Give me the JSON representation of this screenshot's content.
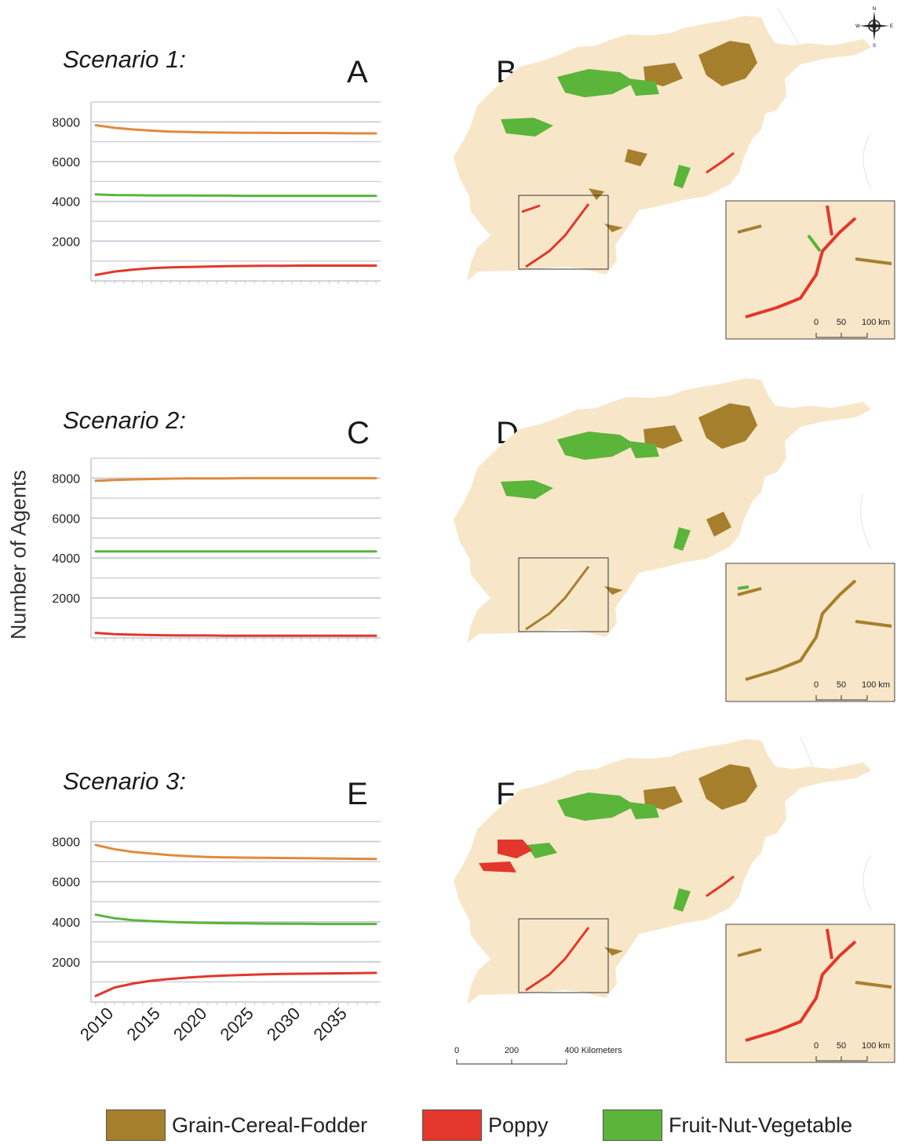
{
  "figure": {
    "ylabel": "Number of Agents"
  },
  "colors": {
    "grain": "#a57f2c",
    "grain_line": "#e08a3c",
    "poppy": "#e2372a",
    "fruit": "#5ab53a",
    "land": "#f8e6c8",
    "grid": "#c4c7d4"
  },
  "panels": {
    "A": "A",
    "B": "B",
    "C": "C",
    "D": "D",
    "E": "E",
    "F": "F"
  },
  "scenarios": [
    {
      "title": "Scenario 1:"
    },
    {
      "title": "Scenario 2:"
    },
    {
      "title": "Scenario 3:"
    }
  ],
  "chart_data": [
    {
      "type": "line",
      "panel": "A",
      "x": [
        2008,
        2010,
        2012,
        2014,
        2016,
        2018,
        2020,
        2022,
        2024,
        2026,
        2028,
        2030,
        2032,
        2034,
        2036,
        2038
      ],
      "ylim": [
        0,
        9000
      ],
      "yticks": [
        "8000",
        "6000",
        "4000",
        "2000"
      ],
      "xticks": [],
      "grid": true,
      "series": [
        {
          "color": "grain",
          "values": [
            7830,
            7700,
            7620,
            7560,
            7510,
            7490,
            7470,
            7460,
            7450,
            7450,
            7440,
            7440,
            7440,
            7430,
            7420,
            7420
          ]
        },
        {
          "color": "fruit",
          "values": [
            4350,
            4320,
            4310,
            4300,
            4300,
            4300,
            4290,
            4290,
            4280,
            4280,
            4280,
            4280,
            4280,
            4280,
            4280,
            4280
          ]
        },
        {
          "color": "poppy",
          "values": [
            300,
            470,
            570,
            640,
            680,
            700,
            720,
            740,
            750,
            760,
            760,
            770,
            770,
            770,
            770,
            770
          ]
        }
      ]
    },
    {
      "type": "line",
      "panel": "C",
      "x": [
        2008,
        2010,
        2012,
        2014,
        2016,
        2018,
        2020,
        2022,
        2024,
        2026,
        2028,
        2030,
        2032,
        2034,
        2036,
        2038
      ],
      "ylim": [
        0,
        9000
      ],
      "yticks": [
        "8000",
        "6000",
        "4000",
        "2000"
      ],
      "xticks": [],
      "grid": true,
      "series": [
        {
          "color": "grain",
          "values": [
            7870,
            7910,
            7940,
            7960,
            7980,
            7990,
            7990,
            7990,
            8000,
            8000,
            8000,
            8000,
            8000,
            8000,
            8000,
            8000
          ]
        },
        {
          "color": "fruit",
          "values": [
            4330,
            4330,
            4330,
            4330,
            4330,
            4330,
            4330,
            4330,
            4330,
            4330,
            4330,
            4330,
            4330,
            4330,
            4330,
            4330
          ]
        },
        {
          "color": "poppy",
          "values": [
            250,
            190,
            160,
            140,
            130,
            120,
            120,
            110,
            110,
            110,
            110,
            110,
            110,
            110,
            110,
            110
          ]
        }
      ]
    },
    {
      "type": "line",
      "panel": "E",
      "x": [
        2008,
        2010,
        2012,
        2014,
        2016,
        2018,
        2020,
        2022,
        2024,
        2026,
        2028,
        2030,
        2032,
        2034,
        2036,
        2038
      ],
      "ylim": [
        0,
        9000
      ],
      "yticks": [
        "8000",
        "6000",
        "4000",
        "2000"
      ],
      "xticks": [
        "2010",
        "2015",
        "2020",
        "2025",
        "2030",
        "2035"
      ],
      "grid": true,
      "series": [
        {
          "color": "grain",
          "values": [
            7830,
            7620,
            7480,
            7400,
            7320,
            7270,
            7230,
            7210,
            7200,
            7190,
            7180,
            7170,
            7160,
            7150,
            7140,
            7130
          ]
        },
        {
          "color": "fruit",
          "values": [
            4350,
            4180,
            4080,
            4030,
            3990,
            3960,
            3940,
            3930,
            3920,
            3910,
            3900,
            3900,
            3890,
            3890,
            3890,
            3890
          ]
        },
        {
          "color": "poppy",
          "values": [
            300,
            720,
            920,
            1060,
            1150,
            1220,
            1280,
            1320,
            1350,
            1380,
            1400,
            1410,
            1420,
            1430,
            1440,
            1450
          ]
        }
      ]
    }
  ],
  "maps": {
    "inset_scale": [
      "0",
      "50",
      "100 km"
    ],
    "main_scale": [
      "0",
      "200",
      "400 Kilometers"
    ],
    "compass": {
      "n": "N",
      "s": "S",
      "e": "E",
      "w": "W"
    }
  },
  "legend": [
    {
      "label": "Grain-Cereal-Fodder",
      "color": "#a57f2c"
    },
    {
      "label": "Poppy",
      "color": "#e2372a"
    },
    {
      "label": "Fruit-Nut-Vegetable",
      "color": "#5ab53a"
    }
  ]
}
